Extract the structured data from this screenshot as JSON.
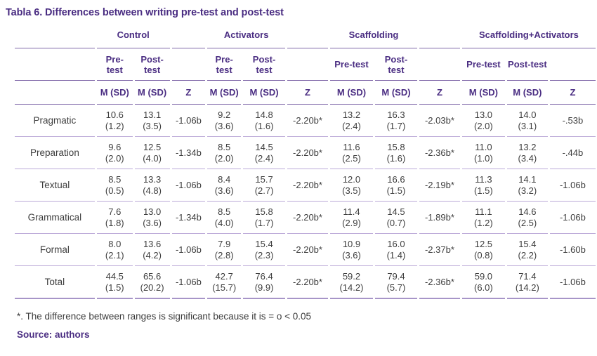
{
  "page": {
    "title": "Tabla 6. Differences between writing pre-test and post-test",
    "footnote": "*. The difference between ranges is significant because it is = o < 0.05",
    "source": "Source: authors"
  },
  "colors": {
    "accent_purple": "#4a2d82",
    "rule_dark": "#7f67a8",
    "rule_light": "#bcaad8",
    "body_text": "#3d3d3d"
  },
  "table": {
    "groups": [
      {
        "label": "Control",
        "pre": "Pre-test",
        "post": "Post-test"
      },
      {
        "label": "Activators",
        "pre": "Pre-test",
        "post": "Post-test"
      },
      {
        "label": "Scaffolding",
        "pre": "Pre-test",
        "post": "Post-test"
      },
      {
        "label": "Scaffolding+Activators",
        "pre": "Pre-test",
        "post": "Post-test"
      }
    ],
    "measure_header": "M (SD)",
    "z_header": "Z",
    "rows": [
      {
        "label": "Pragmatic",
        "cells": [
          {
            "m": "10.6",
            "sd": "(1.2)"
          },
          {
            "m": "13.1",
            "sd": "(3.5)"
          },
          {
            "z": "-1.06b"
          },
          {
            "m": "9.2",
            "sd": "(3.6)"
          },
          {
            "m": "14.8",
            "sd": "(1.6)"
          },
          {
            "z": "-2.20b*"
          },
          {
            "m": "13.2",
            "sd": "(2.4)"
          },
          {
            "m": "16.3",
            "sd": "(1.7)"
          },
          {
            "z": "-2.03b*"
          },
          {
            "m": "13.0",
            "sd": "(2.0)"
          },
          {
            "m": "14.0",
            "sd": "(3.1)"
          },
          {
            "z": "-.53b"
          }
        ]
      },
      {
        "label": "Preparation",
        "cells": [
          {
            "m": "9.6",
            "sd": "(2.0)"
          },
          {
            "m": "12.5",
            "sd": "(4.0)"
          },
          {
            "z": "-1.34b"
          },
          {
            "m": "8.5",
            "sd": "(2.0)"
          },
          {
            "m": "14.5",
            "sd": "(2.4)"
          },
          {
            "z": "-2.20b*"
          },
          {
            "m": "11.6",
            "sd": "(2.5)"
          },
          {
            "m": "15.8",
            "sd": "(1.6)"
          },
          {
            "z": "-2.36b*"
          },
          {
            "m": "11.0",
            "sd": "(1.0)"
          },
          {
            "m": "13.2",
            "sd": "(3.4)"
          },
          {
            "z": "-.44b"
          }
        ]
      },
      {
        "label": "Textual",
        "cells": [
          {
            "m": "8.5",
            "sd": "(0.5)"
          },
          {
            "m": "13.3",
            "sd": "(4.8)"
          },
          {
            "z": "-1.06b"
          },
          {
            "m": "8.4",
            "sd": "(3.6)"
          },
          {
            "m": "15.7",
            "sd": "(2.7)"
          },
          {
            "z": "-2.20b*"
          },
          {
            "m": "12.0",
            "sd": "(3.5)"
          },
          {
            "m": "16.6",
            "sd": "(1.5)"
          },
          {
            "z": "-2.19b*"
          },
          {
            "m": "11.3",
            "sd": "(1.5)"
          },
          {
            "m": "14.1",
            "sd": "(3.2)"
          },
          {
            "z": "-1.06b"
          }
        ]
      },
      {
        "label": "Grammatical",
        "cells": [
          {
            "m": "7.6",
            "sd": "(1.8)"
          },
          {
            "m": "13.0",
            "sd": "(3.6)"
          },
          {
            "z": "-1.34b"
          },
          {
            "m": "8.5",
            "sd": "(4.0)"
          },
          {
            "m": "15.8",
            "sd": "(1.7)"
          },
          {
            "z": "-2.20b*"
          },
          {
            "m": "11.4",
            "sd": "(2.9)"
          },
          {
            "m": "14.5",
            "sd": "(0.7)"
          },
          {
            "z": "-1.89b*"
          },
          {
            "m": "11.1",
            "sd": "(1.2)"
          },
          {
            "m": "14.6",
            "sd": "(2.5)"
          },
          {
            "z": "-1.06b"
          }
        ]
      },
      {
        "label": "Formal",
        "cells": [
          {
            "m": "8.0",
            "sd": "(2.1)"
          },
          {
            "m": "13.6",
            "sd": "(4.2)"
          },
          {
            "z": "-1.06b"
          },
          {
            "m": "7.9",
            "sd": "(2.8)"
          },
          {
            "m": "15.4",
            "sd": "(2.3)"
          },
          {
            "z": "-2.20b*"
          },
          {
            "m": "10.9",
            "sd": "(3.6)"
          },
          {
            "m": "16.0",
            "sd": "(1.4)"
          },
          {
            "z": "-2.37b*"
          },
          {
            "m": "12.5",
            "sd": "(0.8)"
          },
          {
            "m": "15.4",
            "sd": "(2.2)"
          },
          {
            "z": "-1.60b"
          }
        ]
      },
      {
        "label": "Total",
        "cells": [
          {
            "m": "44.5",
            "sd": "(1.5)"
          },
          {
            "m": "65.6",
            "sd": "(20.2)"
          },
          {
            "z": "-1.06b"
          },
          {
            "m": "42.7",
            "sd": "(15.7)"
          },
          {
            "m": "76.4",
            "sd": "(9.9)"
          },
          {
            "z": "-2.20b*"
          },
          {
            "m": "59.2",
            "sd": "(14.2)"
          },
          {
            "m": "79.4",
            "sd": "(5.7)"
          },
          {
            "z": "-2.36b*"
          },
          {
            "m": "59.0",
            "sd": "(6.0)"
          },
          {
            "m": "71.4",
            "sd": "(14.2)"
          },
          {
            "z": "-1.06b"
          }
        ]
      }
    ]
  }
}
